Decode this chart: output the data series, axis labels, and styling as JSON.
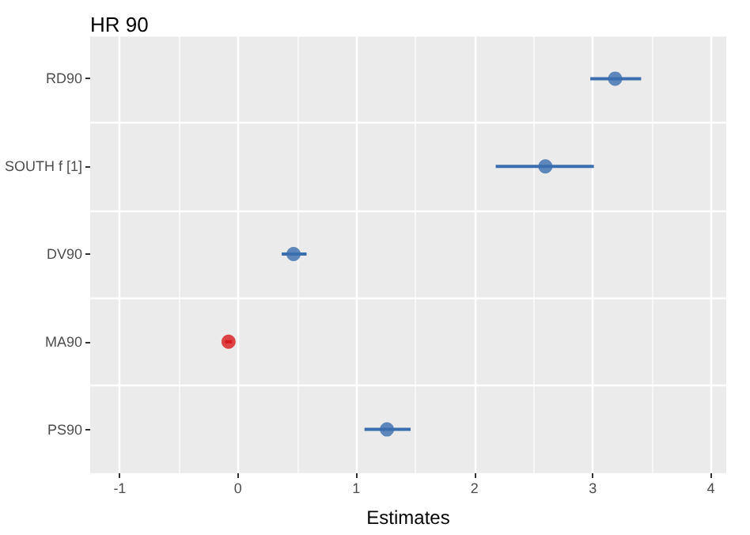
{
  "chart_data": {
    "type": "scatter",
    "title": "HR 90",
    "xlabel": "Estimates",
    "orientation": "horizontal",
    "categories": [
      "RD90",
      "SOUTH f [1]",
      "DV90",
      "MA90",
      "PS90"
    ],
    "values": [
      3.19,
      2.6,
      0.47,
      -0.08,
      1.26
    ],
    "errors": [
      [
        2.98,
        3.41
      ],
      [
        2.18,
        3.01
      ],
      [
        0.37,
        0.58
      ],
      [
        -0.11,
        -0.05
      ],
      [
        1.07,
        1.46
      ]
    ],
    "colors": [
      "#3a6eae",
      "#3a6eae",
      "#3a6eae",
      "#d7191c",
      "#3a6eae"
    ],
    "xlim": [
      -1.25,
      4.13
    ],
    "xticks": [
      -1,
      0,
      1,
      2,
      3,
      4
    ],
    "grid": true,
    "marker": "circle"
  }
}
